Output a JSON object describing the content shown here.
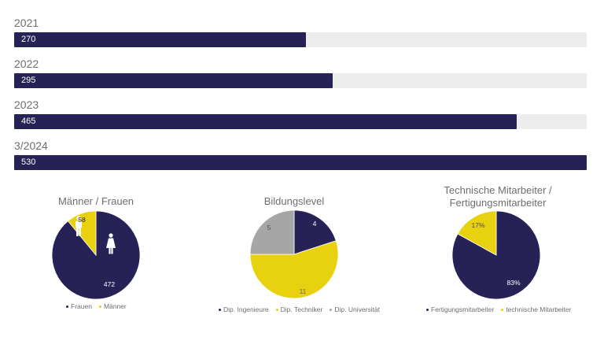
{
  "colors": {
    "navy": "#262255",
    "yellow": "#e8d10f",
    "gray": "#a6a6a6",
    "track": "#ededed"
  },
  "chart_data": [
    {
      "type": "bar",
      "orientation": "horizontal",
      "categories": [
        "2021",
        "2022",
        "2023",
        "3/2024"
      ],
      "values": [
        270,
        295,
        465,
        530
      ],
      "value_labels": [
        "270",
        "295",
        "465",
        "530"
      ],
      "xlim": [
        0,
        530
      ]
    },
    {
      "type": "pie",
      "title": "Männer / Frauen",
      "labels": [
        "Frauen",
        "Männer"
      ],
      "values": [
        472,
        58
      ],
      "value_labels": [
        "472",
        "58"
      ],
      "colors": [
        "#262255",
        "#e8d10f"
      ],
      "icons": [
        "man-icon",
        "woman-icon"
      ],
      "legend": "bottom"
    },
    {
      "type": "pie",
      "title": "Bildungslevel",
      "labels": [
        "Dip. Ingenieure",
        "Dip. Techniker",
        "Dip. Universität"
      ],
      "values": [
        4,
        11,
        5
      ],
      "value_labels": [
        "4",
        "11",
        "5"
      ],
      "colors": [
        "#262255",
        "#e8d10f",
        "#a6a6a6"
      ],
      "legend": "bottom"
    },
    {
      "type": "pie",
      "title_lines": [
        "Technische Mitarbeiter /",
        "Fertigungsmitarbeiter"
      ],
      "labels": [
        "Fertigungsmitarbeiter",
        "technische Mitarbeiter"
      ],
      "values": [
        83,
        17
      ],
      "value_labels": [
        "83%",
        "17%"
      ],
      "colors": [
        "#262255",
        "#e8d10f"
      ],
      "legend": "bottom"
    }
  ]
}
